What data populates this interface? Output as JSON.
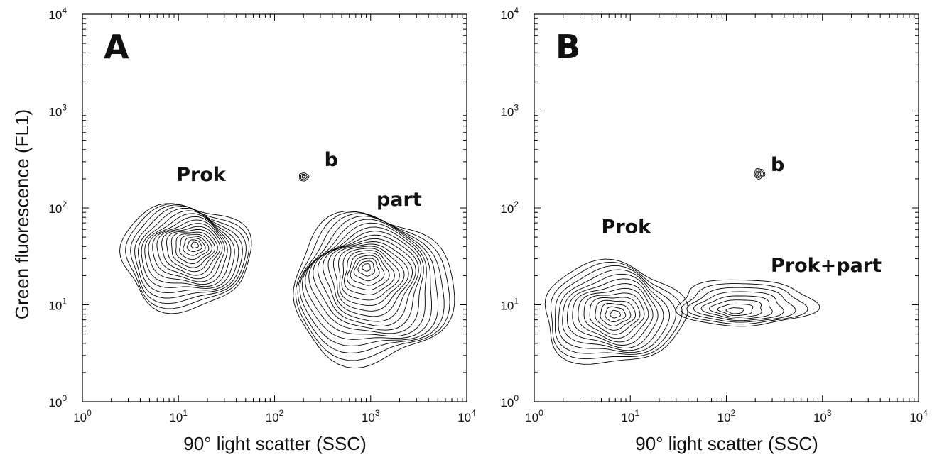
{
  "chart_data": [
    {
      "type": "contour",
      "panel_label": "A",
      "xlabel": "90° light scatter (SSC)",
      "ylabel": "Green fluorescence (FL1)",
      "x_scale": "log",
      "y_scale": "log",
      "xlim": [
        1,
        10000
      ],
      "ylim": [
        1,
        10000
      ],
      "x_ticks": [
        {
          "base": "10",
          "exp": "0"
        },
        {
          "base": "10",
          "exp": "1"
        },
        {
          "base": "10",
          "exp": "2"
        },
        {
          "base": "10",
          "exp": "3"
        },
        {
          "base": "10",
          "exp": "4"
        }
      ],
      "y_ticks": [
        {
          "base": "10",
          "exp": "0"
        },
        {
          "base": "10",
          "exp": "1"
        },
        {
          "base": "10",
          "exp": "2"
        },
        {
          "base": "10",
          "exp": "3"
        },
        {
          "base": "10",
          "exp": "4"
        }
      ],
      "populations": [
        {
          "label": "Prok",
          "label_at": [
            9.5,
            190
          ],
          "center": [
            15,
            42
          ],
          "x_range": [
            2.5,
            55
          ],
          "y_range": [
            9,
            110
          ],
          "levels": 18
        },
        {
          "label": "b",
          "label_at": [
            330,
            270
          ],
          "center": [
            200,
            210
          ],
          "x_range": [
            180,
            225
          ],
          "y_range": [
            190,
            230
          ],
          "levels": 3
        },
        {
          "label": "part",
          "label_at": [
            1150,
            105
          ],
          "center": [
            900,
            25
          ],
          "x_range": [
            150,
            7000
          ],
          "y_range": [
            2.5,
            85
          ],
          "levels": 20
        }
      ]
    },
    {
      "type": "contour",
      "panel_label": "B",
      "xlabel": "90° light scatter (SSC)",
      "ylabel": "",
      "x_scale": "log",
      "y_scale": "log",
      "xlim": [
        1,
        10000
      ],
      "ylim": [
        1,
        10000
      ],
      "x_ticks": [
        {
          "base": "10",
          "exp": "0"
        },
        {
          "base": "10",
          "exp": "1"
        },
        {
          "base": "10",
          "exp": "2"
        },
        {
          "base": "10",
          "exp": "3"
        },
        {
          "base": "10",
          "exp": "4"
        }
      ],
      "y_ticks": [
        {
          "base": "10",
          "exp": "0"
        },
        {
          "base": "10",
          "exp": "1"
        },
        {
          "base": "10",
          "exp": "2"
        },
        {
          "base": "10",
          "exp": "3"
        },
        {
          "base": "10",
          "exp": "4"
        }
      ],
      "populations": [
        {
          "label": "b",
          "label_at": [
            290,
            240
          ],
          "center": [
            220,
            225
          ],
          "x_range": [
            195,
            250
          ],
          "y_range": [
            200,
            255
          ],
          "levels": 4
        },
        {
          "label": "Prok",
          "label_at": [
            5,
            55
          ],
          "center": [
            7,
            8
          ],
          "x_range": [
            1.2,
            35
          ],
          "y_range": [
            2.4,
            27
          ],
          "levels": 14
        },
        {
          "label": "Prok+part",
          "label_at": [
            290,
            22
          ],
          "center": [
            120,
            8.5
          ],
          "x_range": [
            30,
            800
          ],
          "y_range": [
            6,
            18
          ],
          "levels": 8
        }
      ]
    }
  ]
}
